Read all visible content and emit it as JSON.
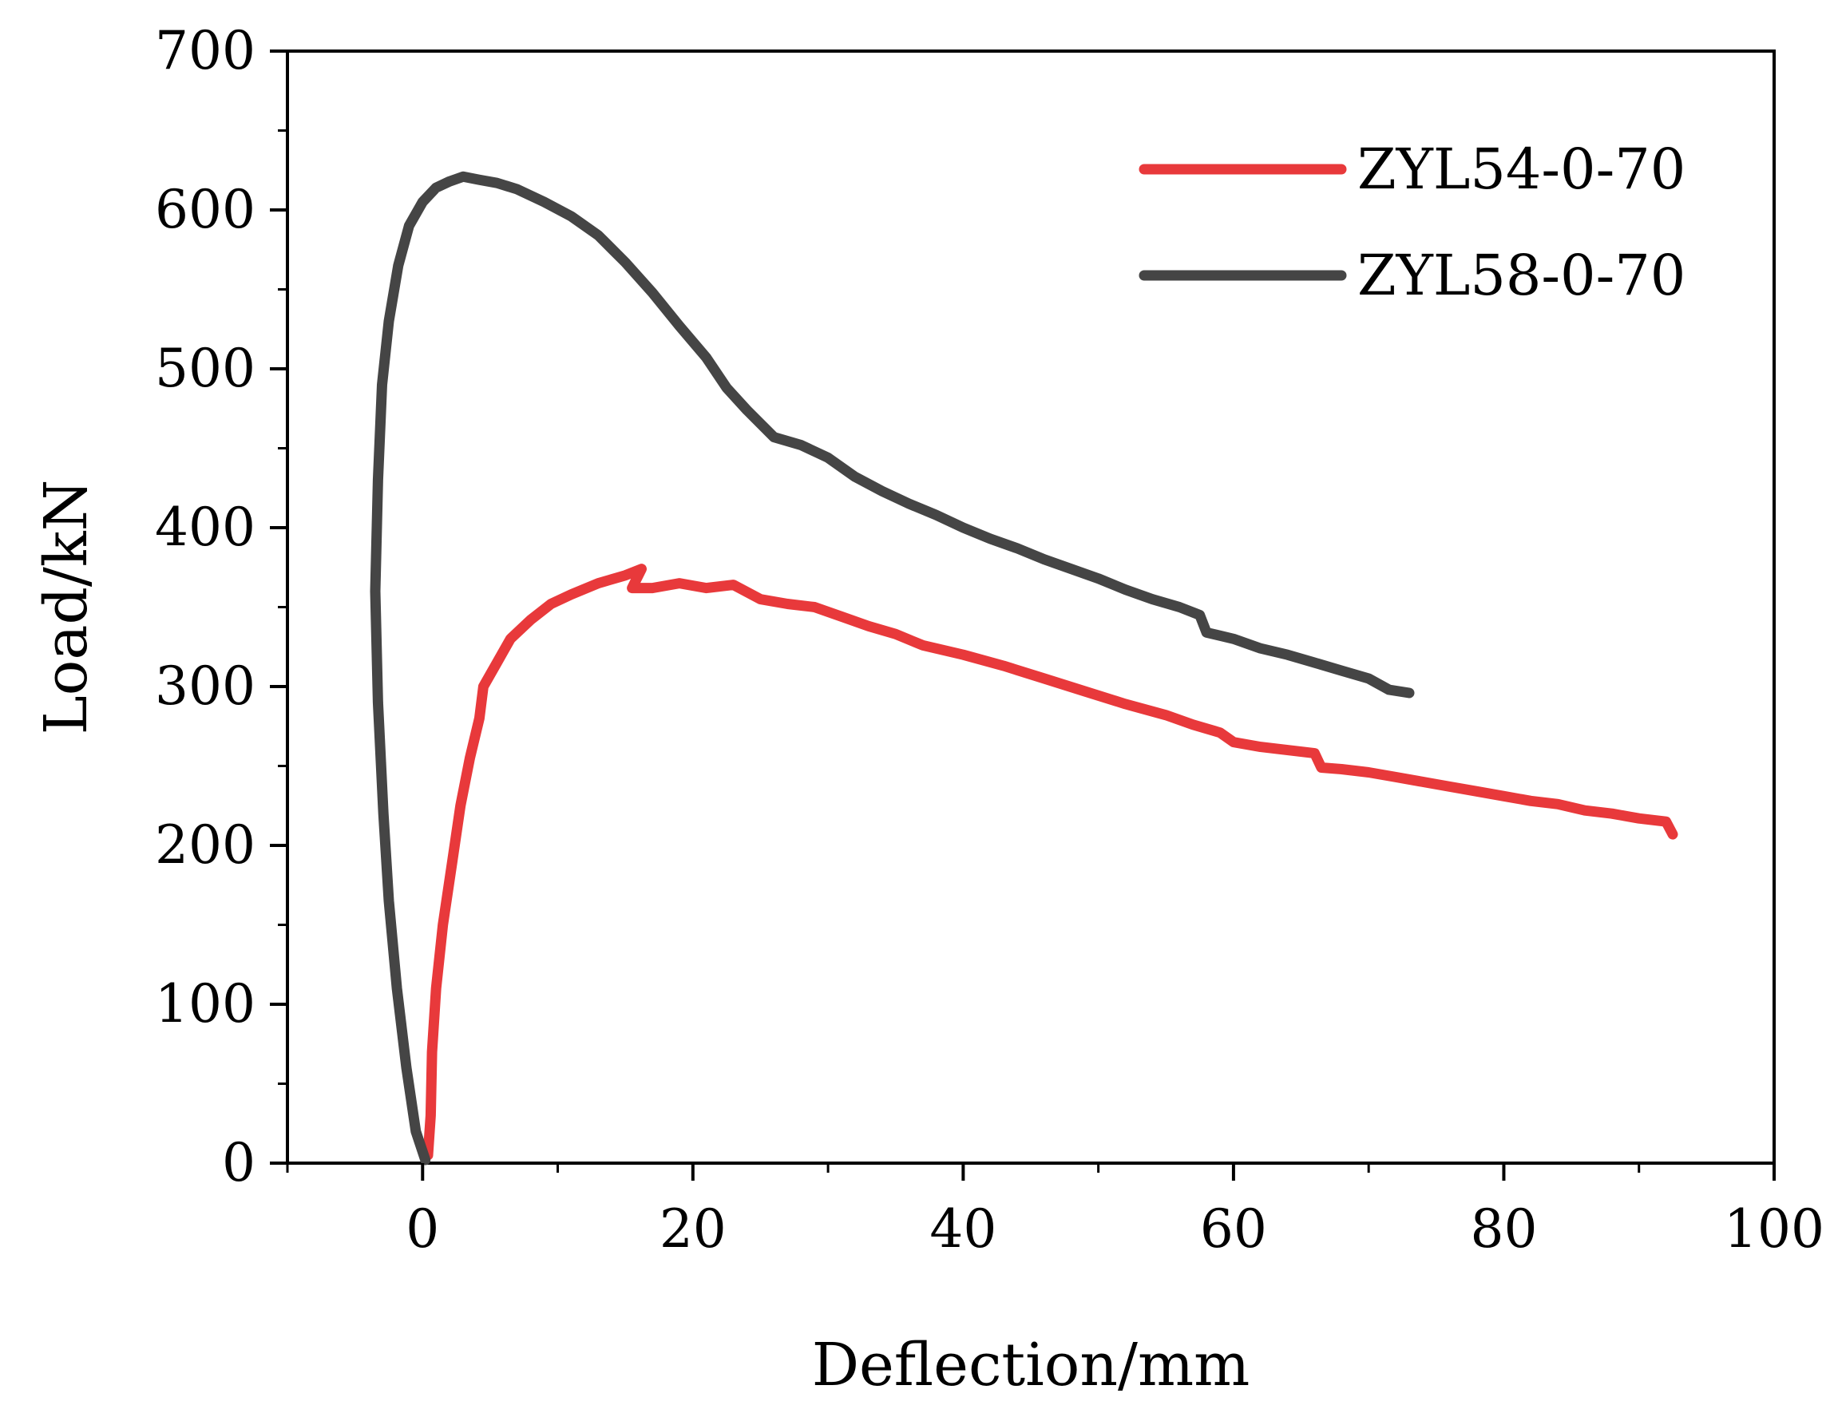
{
  "chart_data": {
    "type": "line",
    "title": "",
    "xlabel": "Deflection/mm",
    "ylabel": "Load/kN",
    "xlim": [
      -10,
      100
    ],
    "ylim": [
      0,
      700
    ],
    "xticks": [
      0,
      20,
      40,
      60,
      80,
      100
    ],
    "yticks": [
      0,
      100,
      200,
      300,
      400,
      500,
      600,
      700
    ],
    "grid": false,
    "legend_position": "top-right",
    "series": [
      {
        "name": "ZYL54-0-70",
        "color": "#e8393b",
        "points": [
          [
            0.4,
            5
          ],
          [
            0.6,
            30
          ],
          [
            0.7,
            70
          ],
          [
            1.0,
            110
          ],
          [
            1.5,
            150
          ],
          [
            2.2,
            190
          ],
          [
            2.8,
            225
          ],
          [
            3.5,
            255
          ],
          [
            4.2,
            280
          ],
          [
            4.5,
            300
          ],
          [
            5.5,
            315
          ],
          [
            6.5,
            330
          ],
          [
            8,
            342
          ],
          [
            9.5,
            352
          ],
          [
            11,
            358
          ],
          [
            13,
            365
          ],
          [
            15,
            370
          ],
          [
            16.2,
            374
          ],
          [
            15.5,
            362
          ],
          [
            17,
            362
          ],
          [
            19,
            365
          ],
          [
            21,
            362
          ],
          [
            23,
            364
          ],
          [
            25,
            355
          ],
          [
            27,
            352
          ],
          [
            29,
            350
          ],
          [
            31,
            344
          ],
          [
            33,
            338
          ],
          [
            35,
            333
          ],
          [
            37,
            326
          ],
          [
            40,
            320
          ],
          [
            43,
            313
          ],
          [
            46,
            305
          ],
          [
            49,
            297
          ],
          [
            52,
            289
          ],
          [
            55,
            282
          ],
          [
            57,
            276
          ],
          [
            59,
            271
          ],
          [
            60,
            265
          ],
          [
            62,
            262
          ],
          [
            64,
            260
          ],
          [
            66,
            258
          ],
          [
            66.5,
            249
          ],
          [
            68,
            248
          ],
          [
            70,
            246
          ],
          [
            72,
            243
          ],
          [
            74,
            240
          ],
          [
            76,
            237
          ],
          [
            78,
            234
          ],
          [
            80,
            231
          ],
          [
            82,
            228
          ],
          [
            84,
            226
          ],
          [
            86,
            222
          ],
          [
            88,
            220
          ],
          [
            90,
            217
          ],
          [
            92,
            215
          ],
          [
            92.5,
            207
          ]
        ]
      },
      {
        "name": "ZYL58-0-70",
        "color": "#454545",
        "points": [
          [
            0.2,
            2
          ],
          [
            -0.5,
            20
          ],
          [
            -1.2,
            60
          ],
          [
            -1.9,
            110
          ],
          [
            -2.5,
            165
          ],
          [
            -2.9,
            220
          ],
          [
            -3.3,
            290
          ],
          [
            -3.5,
            360
          ],
          [
            -3.3,
            430
          ],
          [
            -3.0,
            490
          ],
          [
            -2.5,
            530
          ],
          [
            -1.8,
            565
          ],
          [
            -1.0,
            590
          ],
          [
            0,
            605
          ],
          [
            1,
            614
          ],
          [
            2,
            618
          ],
          [
            3,
            621
          ],
          [
            4.2,
            619
          ],
          [
            5.5,
            617
          ],
          [
            7,
            613
          ],
          [
            9,
            605
          ],
          [
            11,
            596
          ],
          [
            13,
            584
          ],
          [
            15,
            567
          ],
          [
            17,
            548
          ],
          [
            19,
            527
          ],
          [
            21,
            507
          ],
          [
            22.5,
            488
          ],
          [
            24,
            474
          ],
          [
            26,
            457
          ],
          [
            28,
            452
          ],
          [
            30,
            444
          ],
          [
            32,
            432
          ],
          [
            34,
            423
          ],
          [
            36,
            415
          ],
          [
            38,
            408
          ],
          [
            40,
            400
          ],
          [
            42,
            393
          ],
          [
            44,
            387
          ],
          [
            46,
            380
          ],
          [
            48,
            374
          ],
          [
            50,
            368
          ],
          [
            52,
            361
          ],
          [
            54,
            355
          ],
          [
            56,
            350
          ],
          [
            57.5,
            345
          ],
          [
            58,
            334
          ],
          [
            60,
            330
          ],
          [
            62,
            324
          ],
          [
            64,
            320
          ],
          [
            66,
            315
          ],
          [
            68,
            310
          ],
          [
            70,
            305
          ],
          [
            71.5,
            298
          ],
          [
            73,
            296
          ]
        ]
      }
    ]
  }
}
